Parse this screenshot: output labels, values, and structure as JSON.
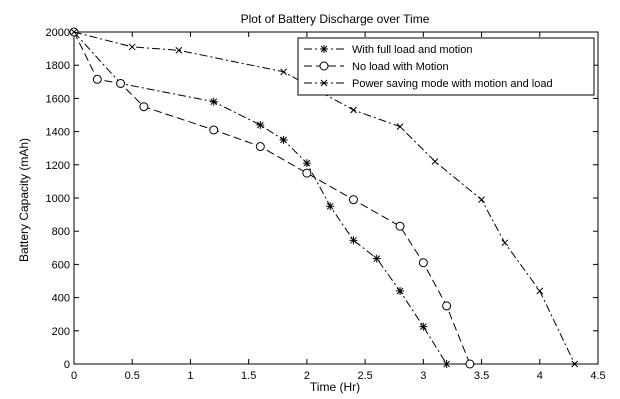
{
  "chart_data": {
    "type": "line",
    "title": "Plot of Battery Discharge over Time",
    "xlabel": "Time (Hr)",
    "ylabel": "Battery Capacity (mAh)",
    "xlim": [
      0,
      4.5
    ],
    "ylim": [
      0,
      2000
    ],
    "xticks": [
      "0",
      "0.5",
      "1",
      "1.5",
      "2",
      "2.5",
      "3",
      "3.5",
      "4",
      "4.5"
    ],
    "yticks": [
      "0",
      "200",
      "400",
      "600",
      "800",
      "1000",
      "1200",
      "1400",
      "1600",
      "1800",
      "2000"
    ],
    "grid": false,
    "legend_position": "top-right",
    "series": [
      {
        "name": "With full load and motion",
        "marker": "asterisk",
        "line_style": "dash-dot",
        "color": "#000000",
        "x": [
          0,
          0.4,
          1.2,
          1.6,
          1.8,
          2.0,
          2.2,
          2.4,
          2.6,
          2.8,
          3.0,
          3.2
        ],
        "y": [
          2000,
          1690,
          1580,
          1440,
          1350,
          1210,
          950,
          745,
          635,
          440,
          225,
          0
        ]
      },
      {
        "name": "No load with Motion",
        "marker": "circle",
        "line_style": "dash",
        "color": "#000000",
        "x": [
          0,
          0.2,
          0.4,
          0.6,
          1.2,
          1.6,
          2.0,
          2.4,
          2.8,
          3.0,
          3.2,
          3.4
        ],
        "y": [
          2000,
          1715,
          1690,
          1550,
          1410,
          1310,
          1150,
          990,
          830,
          610,
          350,
          0
        ]
      },
      {
        "name": "Power saving mode with motion and load",
        "marker": "x",
        "line_style": "dash-dot",
        "color": "#000000",
        "x": [
          0,
          0.5,
          0.9,
          1.8,
          2.4,
          2.8,
          3.1,
          3.5,
          3.7,
          4.0,
          4.3
        ],
        "y": [
          2000,
          1910,
          1890,
          1760,
          1530,
          1430,
          1220,
          990,
          730,
          440,
          0
        ]
      }
    ]
  }
}
